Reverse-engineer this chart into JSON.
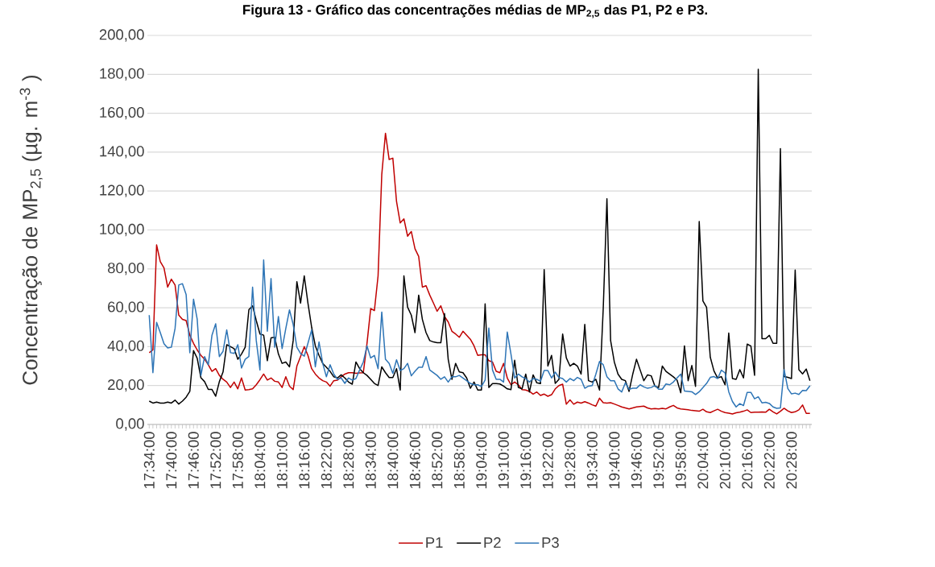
{
  "chart_data": {
    "type": "line",
    "title": "Figura 13 - Gráfico das concentrações médias de MP$_{2,5}$ das P1, P2 e P3.",
    "ylabel": "Concentração de MP$_{2,5}$ (µg. m$^{-3}$ )",
    "categories": [
      "17:34:00",
      null,
      null,
      null,
      null,
      null,
      "17:40:00",
      null,
      null,
      null,
      null,
      null,
      "17:46:00",
      null,
      null,
      null,
      null,
      null,
      "17:52:00",
      null,
      null,
      null,
      null,
      null,
      "17:58:00",
      null,
      null,
      null,
      null,
      null,
      "18:04:00",
      null,
      null,
      null,
      null,
      null,
      "18:10:00",
      null,
      null,
      null,
      null,
      null,
      "18:16:00",
      null,
      null,
      null,
      null,
      null,
      "18:22:00",
      null,
      null,
      null,
      null,
      null,
      "18:28:00",
      null,
      null,
      null,
      null,
      null,
      "18:34:00",
      null,
      null,
      null,
      null,
      null,
      "18:40:00",
      null,
      null,
      null,
      null,
      null,
      "18:46:00",
      null,
      null,
      null,
      null,
      null,
      "18:52:00",
      null,
      null,
      null,
      null,
      null,
      "18:58:00",
      null,
      null,
      null,
      null,
      null,
      "19:04:00",
      null,
      null,
      null,
      null,
      null,
      "19:10:00",
      null,
      null,
      null,
      null,
      null,
      "19:16:00",
      null,
      null,
      null,
      null,
      null,
      "19:22:00",
      null,
      null,
      null,
      null,
      null,
      "19:28:00",
      null,
      null,
      null,
      null,
      null,
      "19:34:00",
      null,
      null,
      null,
      null,
      null,
      "19:40:00",
      null,
      null,
      null,
      null,
      null,
      "19:46:00",
      null,
      null,
      null,
      null,
      null,
      "19:52:00",
      null,
      null,
      null,
      null,
      null,
      "19:58:00",
      null,
      null,
      null,
      null,
      null,
      "20:04:00",
      null,
      null,
      null,
      null,
      null,
      "20:10:00",
      null,
      null,
      null,
      null,
      null,
      "20:16:00",
      null,
      null,
      null,
      null,
      null,
      "20:22:00",
      null,
      null,
      null,
      null,
      null,
      "20:28:00",
      null,
      null,
      null,
      null,
      null
    ],
    "series": [
      {
        "name": "P1",
        "color": "#c00000",
        "values": [
          36.9,
          38.3,
          92.3,
          83.7,
          80.5,
          70.6,
          74.7,
          71.7,
          56.2,
          54,
          53.4,
          45.9,
          41.7,
          38.3,
          35.5,
          33.5,
          30.7,
          27.3,
          28.7,
          25.2,
          23.2,
          21.8,
          19,
          21.8,
          18.3,
          23.9,
          17.7,
          17.9,
          18.3,
          20.4,
          23,
          25.9,
          22.8,
          23.9,
          22.2,
          21.8,
          19,
          24.5,
          19.7,
          17.9,
          30,
          34.9,
          40,
          35.5,
          28.7,
          25.9,
          23.9,
          22.5,
          21.8,
          19.7,
          22.5,
          22.8,
          24.5,
          25.9,
          26.6,
          26.6,
          26.3,
          26.5,
          26.6,
          41.7,
          59.6,
          58.5,
          76.4,
          128.4,
          149.7,
          136.2,
          136.9,
          114.6,
          103.6,
          105.7,
          96.8,
          99.2,
          90.3,
          86.4,
          70.6,
          71.3,
          66.5,
          62.4,
          58.2,
          61,
          55.5,
          52.7,
          47.9,
          46.5,
          44.8,
          47.9,
          45.9,
          43.8,
          40.4,
          35.5,
          35.8,
          35.8,
          32.8,
          32.1,
          27.3,
          26.6,
          31.4,
          23.9,
          20.4,
          21.8,
          20.4,
          17.9,
          17.7,
          17,
          15.6,
          16.7,
          14.9,
          15.6,
          14.5,
          15.3,
          18.3,
          20,
          20.7,
          10.4,
          12.6,
          10.4,
          11.5,
          11,
          11.7,
          11,
          10.1,
          9.4,
          13.5,
          11.2,
          11,
          11.2,
          10.5,
          9.8,
          9,
          8.5,
          8,
          8.5,
          9,
          9.2,
          9.4,
          8.5,
          8,
          8.2,
          8,
          8.3,
          8,
          9,
          9.8,
          8.5,
          8,
          7.8,
          7.6,
          7.2,
          7,
          6.8,
          7.8,
          6.5,
          6.1,
          7,
          7.8,
          6.8,
          6.1,
          5.8,
          5.4,
          6,
          6.3,
          6.8,
          7.5,
          6.1,
          6.3,
          6.3,
          6.4,
          6.3,
          7.8,
          6.5,
          5.4,
          6.8,
          8.3,
          7,
          6.1,
          6.5,
          7.5,
          10,
          5.7,
          5.7
        ]
      },
      {
        "name": "P2",
        "color": "#000000",
        "values": [
          12,
          11,
          11.5,
          11,
          11,
          11.5,
          11,
          12.5,
          10.5,
          12,
          14,
          17,
          38,
          34,
          24,
          22,
          18,
          18,
          14.5,
          22,
          27,
          41,
          40,
          39,
          33.5,
          36.2,
          39.7,
          59,
          61,
          53.4,
          46.5,
          45.9,
          32.8,
          44.5,
          44.8,
          36.2,
          31.4,
          32.1,
          29.6,
          43.1,
          73.4,
          62.4,
          76.4,
          62.4,
          50,
          40.4,
          35.5,
          31.4,
          29.4,
          27.3,
          24.5,
          23.9,
          25.5,
          23.9,
          21.8,
          20.7,
          32.1,
          28.7,
          26.6,
          25.2,
          23.2,
          21.1,
          20,
          29.6,
          26.6,
          24.1,
          24.1,
          28.7,
          17.7,
          76.4,
          60.3,
          56.2,
          47.2,
          66.5,
          54,
          47.2,
          43.1,
          42.4,
          42,
          42,
          57,
          33.5,
          23.2,
          31.4,
          27,
          26.6,
          23.9,
          18.6,
          21.8,
          17.7,
          17.7,
          62,
          19,
          21,
          21,
          20.8,
          19.7,
          18.3,
          17.9,
          33,
          19,
          18.3,
          25.9,
          16.7,
          25.5,
          21.4,
          21,
          79.6,
          30,
          35.5,
          21.1,
          23.2,
          46.5,
          34.2,
          30,
          31.4,
          30,
          25.9,
          51.4,
          22.5,
          21.8,
          23.2,
          17.7,
          59.6,
          116,
          43.1,
          32.1,
          25.9,
          23.2,
          22.5,
          17,
          25.9,
          33.5,
          28,
          22.5,
          25.5,
          25,
          19.7,
          19,
          30,
          27.3,
          25.9,
          24.5,
          22.8,
          16.3,
          40.4,
          22.5,
          30.3,
          19.6,
          104.3,
          63.5,
          60.2,
          34.6,
          27.5,
          23.9,
          24.6,
          20.4,
          47,
          23.6,
          23.2,
          28.2,
          23.9,
          41.3,
          40.3,
          25.3,
          182.6,
          44.1,
          44.1,
          45.8,
          41.7,
          41.7,
          141.8,
          24.6,
          24.2,
          23.6,
          79.4,
          28.2,
          26,
          28.5,
          22.5
        ]
      },
      {
        "name": "P3",
        "color": "#2e75b6",
        "values": [
          56.2,
          26.6,
          52.5,
          47.2,
          41.5,
          39.3,
          39.7,
          49.3,
          71.7,
          72.4,
          66.8,
          36.9,
          64.4,
          54.1,
          25.2,
          34.9,
          30.7,
          45.9,
          51.8,
          34.9,
          37.6,
          48.6,
          36.9,
          36.5,
          41,
          29,
          33.5,
          34.9,
          70.6,
          43.1,
          28,
          84.6,
          47.9,
          75,
          39.7,
          55.5,
          39,
          49.3,
          58.9,
          51.4,
          39.7,
          36.5,
          35.1,
          41.7,
          48.6,
          29.6,
          42.4,
          31.4,
          24.5,
          30.7,
          25.9,
          23.2,
          23.9,
          21.1,
          23.9,
          22.8,
          23.6,
          28,
          32.1,
          40.4,
          34.2,
          35.5,
          28.7,
          57.8,
          33.5,
          31.4,
          26.3,
          33.2,
          27.7,
          28.7,
          31.4,
          25,
          27.3,
          29.4,
          29.4,
          34.9,
          28,
          26.6,
          25.2,
          23.2,
          24.5,
          21.8,
          24.5,
          24.5,
          25.2,
          23.9,
          22.5,
          21.1,
          20.4,
          20.4,
          19.5,
          22.8,
          49.6,
          28,
          23.2,
          23.2,
          21.8,
          47.5,
          36.2,
          23.9,
          25.9,
          24.5,
          23.6,
          21.8,
          23.6,
          23.2,
          22.2,
          27.7,
          27.7,
          23.9,
          26.9,
          24.1,
          23.6,
          21.8,
          23.6,
          22.5,
          24.2,
          23.2,
          18.6,
          19.7,
          20,
          25.9,
          32.4,
          30.7,
          24.5,
          22.5,
          22.5,
          18.3,
          16.7,
          21.4,
          18.1,
          18.6,
          18.6,
          20.4,
          19.3,
          18.6,
          19,
          20,
          18.1,
          18.1,
          20.8,
          20.4,
          21.8,
          23.9,
          25.9,
          17.2,
          17,
          16.8,
          15.4,
          16.8,
          18.9,
          21.1,
          24.2,
          24.6,
          23.6,
          27.9,
          26.5,
          16.8,
          11.8,
          9,
          10.7,
          9.7,
          16.5,
          16.5,
          13.2,
          14.2,
          11.1,
          11.4,
          10.8,
          9,
          8.3,
          8.5,
          28.2,
          18.5,
          15.7,
          16.1,
          15.4,
          17.5,
          17.4,
          19.9
        ]
      }
    ],
    "ylim": [
      0,
      200
    ],
    "yticks": [
      {
        "value": 0,
        "label": "0,00"
      },
      {
        "value": 20,
        "label": "20,00"
      },
      {
        "value": 40,
        "label": "40,00"
      },
      {
        "value": 60,
        "label": "60,00"
      },
      {
        "value": 80,
        "label": "80,00"
      },
      {
        "value": 100,
        "label": "100,00"
      },
      {
        "value": 120,
        "label": "120,00"
      },
      {
        "value": 140,
        "label": "140,00"
      },
      {
        "value": 160,
        "label": "160,00"
      },
      {
        "value": 180,
        "label": "180,00"
      },
      {
        "value": 200,
        "label": "200,00"
      }
    ],
    "grid": "y",
    "legend": "bottom"
  }
}
